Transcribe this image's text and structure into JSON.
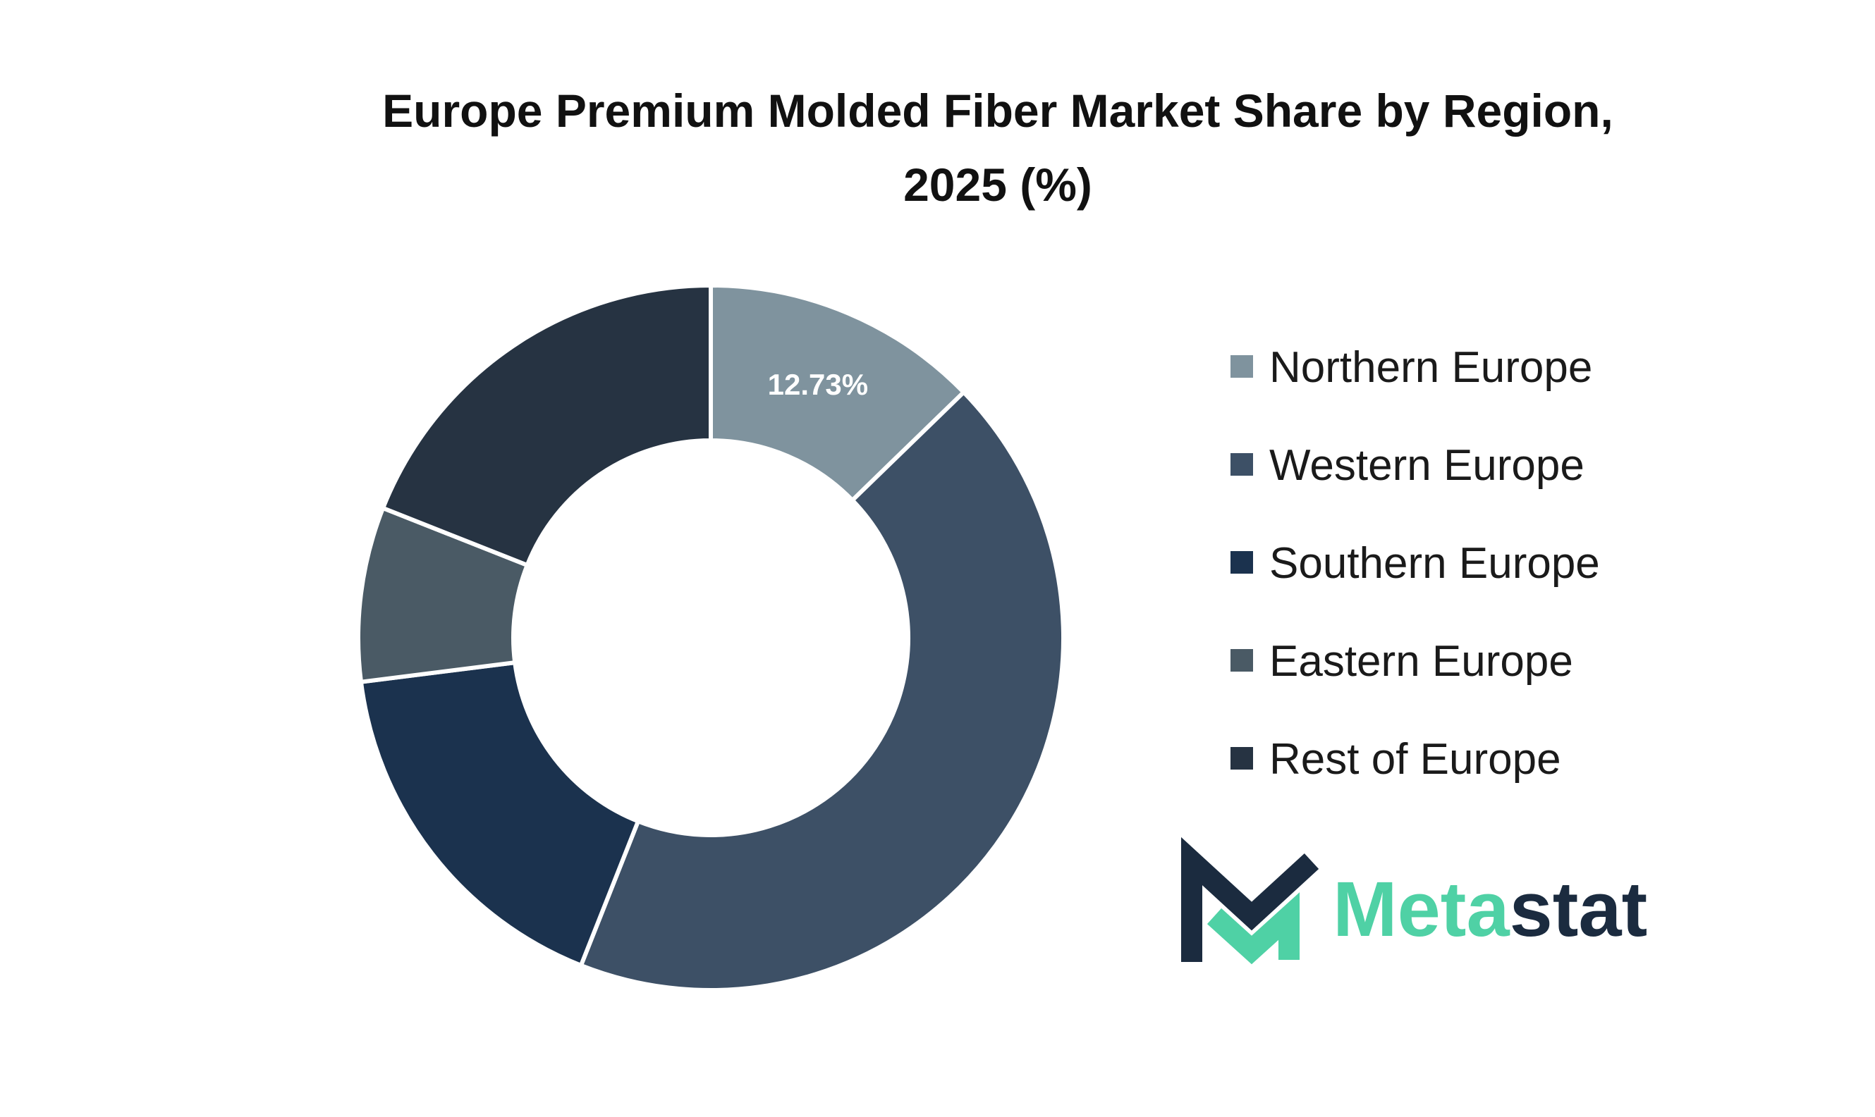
{
  "chart_data": {
    "type": "pie",
    "style": "donut",
    "title_line1": "Europe Premium Molded Fiber Market Share by Region,",
    "title_line2": "2025 (%)",
    "categories": [
      "Northern Europe",
      "Western Europe",
      "Southern Europe",
      "Eastern Europe",
      "Rest of Europe"
    ],
    "values": [
      12.73,
      43.27,
      17.0,
      8.0,
      19.0
    ],
    "colors": [
      "#7f939e",
      "#3d5066",
      "#1b324e",
      "#4a5a65",
      "#263342"
    ],
    "data_labels": [
      "12.73%",
      "",
      "",
      "",
      ""
    ],
    "legend_placement": "right"
  },
  "brand": {
    "name_part1": "Meta",
    "name_part2": "stat",
    "color_accent": "#4fd1a5",
    "color_dark": "#1b2b3f"
  }
}
